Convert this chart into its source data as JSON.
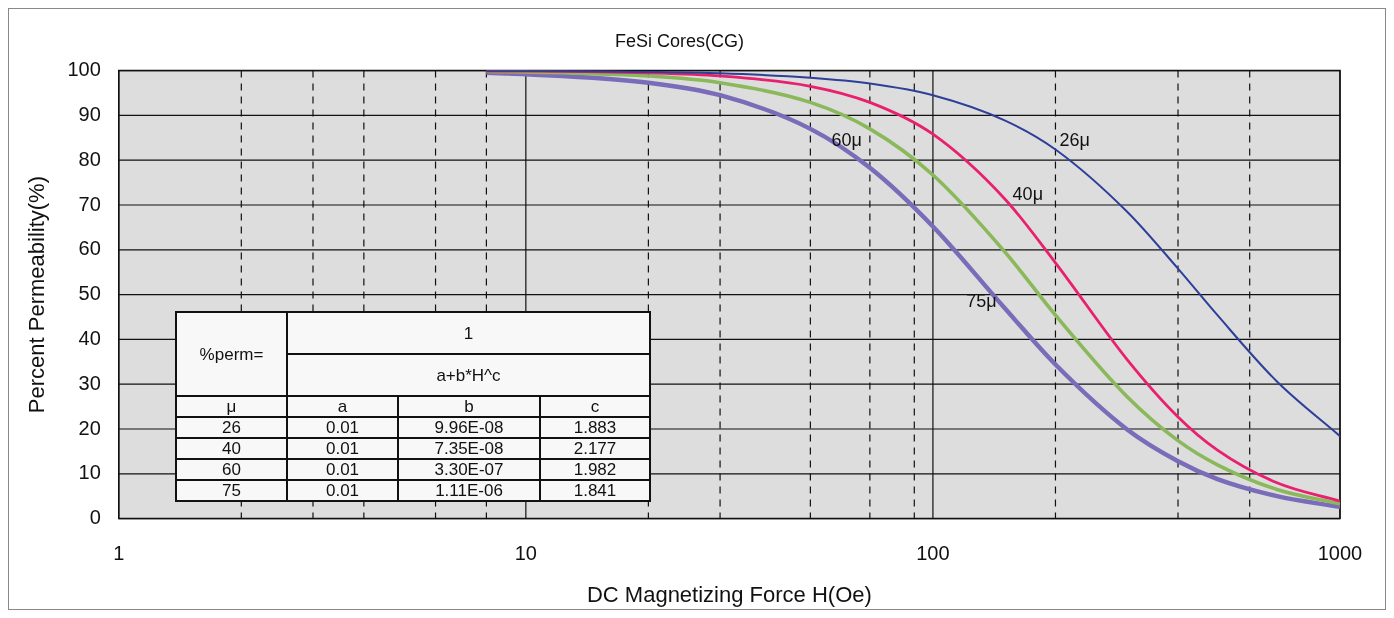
{
  "chart_data": {
    "type": "line",
    "title": "FeSi Cores(CG)",
    "xlabel": "DC Magnetizing Force H(Oe)",
    "ylabel": "Percent Permeability(%)",
    "x": [
      8,
      10,
      20,
      30,
      50,
      70,
      100,
      150,
      200,
      300,
      400,
      500,
      700,
      1000
    ],
    "series": [
      {
        "name": "26μ",
        "color": "#2e3f99",
        "values": [
          99.9,
          99.9,
          99.7,
          99.4,
          98.4,
          97.1,
          94.5,
          88.9,
          82.4,
          68.5,
          55.8,
          45.4,
          30.6,
          18.4
        ]
      },
      {
        "name": "40μ",
        "color": "#e8206e",
        "values": [
          99.9,
          99.9,
          99.5,
          98.8,
          96.5,
          92.9,
          85.8,
          71.4,
          57.1,
          35.5,
          22.7,
          15.3,
          8.0,
          3.9
        ]
      },
      {
        "name": "60μ",
        "color": "#8ab85a",
        "values": [
          99.8,
          99.7,
          98.8,
          97.3,
          92.9,
          87.0,
          76.7,
          59.6,
          45.4,
          27.2,
          17.4,
          12.0,
          6.5,
          3.3
        ]
      },
      {
        "name": "75μ",
        "color": "#7a6cb8",
        "values": [
          99.5,
          99.2,
          97.3,
          94.5,
          87.0,
          78.3,
          65.2,
          47.0,
          34.4,
          19.9,
          12.8,
          8.8,
          5.0,
          2.6
        ]
      }
    ],
    "log": "x",
    "xlim": [
      1,
      1000
    ],
    "xticks": [
      1,
      {
        "value": 2,
        "label": null
      },
      {
        "value": 3,
        "label": null
      },
      {
        "value": 4,
        "label": null
      },
      {
        "value": 6,
        "label": null
      },
      {
        "value": 8,
        "label": null
      },
      10,
      {
        "value": 20,
        "label": null
      },
      {
        "value": 30,
        "label": null
      },
      {
        "value": 50,
        "label": null
      },
      {
        "value": 70,
        "label": null
      },
      {
        "value": 90,
        "label": null
      },
      100,
      {
        "value": 200,
        "label": null
      },
      {
        "value": 400,
        "label": null
      },
      {
        "value": 600,
        "label": null
      },
      1000
    ],
    "ylim": [
      0,
      100
    ],
    "yticks": [
      0,
      10,
      20,
      30,
      40,
      50,
      60,
      70,
      80,
      90,
      100
    ],
    "grid": true,
    "legend": false,
    "marker": "none",
    "line_style": "solid",
    "annotations": [
      "%perm=",
      "1",
      "a+b*H^c",
      "μ",
      "a",
      "b",
      "c",
      "26",
      "0.01",
      "9.96E-08",
      "1.883",
      "40",
      "0.01",
      "7.35E-08",
      "2.177",
      "60",
      "0.01",
      "3.30E-07",
      "1.982",
      "75",
      "0.01",
      "1.11E-06",
      "1.841"
    ]
  }
}
